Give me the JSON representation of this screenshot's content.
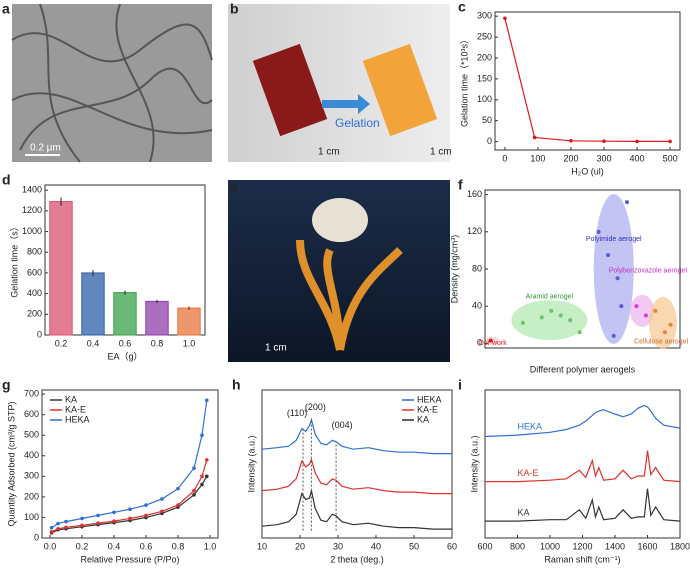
{
  "images": [
    {
      "panel": "a",
      "labels": [
        "0.2 μm"
      ]
    },
    {
      "panel": "b",
      "labels": [
        "Gelation",
        "1 cm",
        "1 cm"
      ]
    },
    {
      "panel": "e",
      "labels": [
        "1 cm"
      ]
    }
  ],
  "chart_data": [
    {
      "panel": "c",
      "type": "line",
      "xlabel": "H₂O (ul)",
      "ylabel": "Gelation time（*10³s）",
      "x": [
        0,
        90,
        200,
        300,
        400,
        500
      ],
      "values": [
        295,
        10,
        2,
        1,
        0.5,
        0.5
      ],
      "color": "#e0191b",
      "markers": true,
      "xlim": [
        -30,
        530
      ],
      "xticks": [
        0,
        100,
        200,
        300,
        400,
        500
      ],
      "ylim": [
        -20,
        310
      ],
      "yticks": [
        0,
        50,
        100,
        150,
        200,
        250,
        300
      ]
    },
    {
      "panel": "d",
      "type": "bar",
      "xlabel": "EA（g）",
      "ylabel": "Gelation time（s）",
      "categories": [
        "0.2",
        "0.4",
        "0.6",
        "0.8",
        "1.0"
      ],
      "values": [
        1290,
        600,
        410,
        325,
        260
      ],
      "errors": [
        40,
        30,
        20,
        15,
        15
      ],
      "colors": [
        "#d9516f",
        "#2e5fa8",
        "#3aa14a",
        "#8e3fa8",
        "#e8743b"
      ],
      "ylim": [
        0,
        1450
      ],
      "yticks": [
        0,
        200,
        400,
        600,
        800,
        1000,
        1200,
        1400
      ]
    },
    {
      "panel": "f",
      "type": "scatter",
      "xlabel": "Different polymer aerogels",
      "ylabel": "Density (mg/cm³)",
      "annotations": [
        "Our work",
        "Aramid aerogel",
        "Polyimide aerogel",
        "Polybenzoxazole aerogel",
        "Cellulose aerogel"
      ],
      "series": [
        {
          "color": "#e0191b",
          "x": [
            0.3
          ],
          "y": [
            3
          ]
        },
        {
          "color": "#6cc36c",
          "x": [
            2,
            3,
            3.5,
            4,
            4.5,
            5
          ],
          "y": [
            22,
            28,
            35,
            30,
            25,
            12
          ]
        },
        {
          "color": "#5a5ad6",
          "x": [
            6,
            6.5,
            7,
            7.5,
            7.2,
            6.8
          ],
          "y": [
            120,
            95,
            70,
            152,
            40,
            8
          ]
        },
        {
          "color": "#d040d0",
          "x": [
            8,
            8.5
          ],
          "y": [
            40,
            30
          ]
        },
        {
          "color": "#e8823b",
          "x": [
            9,
            9.5,
            9.8
          ],
          "y": [
            35,
            12,
            20
          ]
        }
      ],
      "xlim": [
        0,
        10.3
      ],
      "ylim": [
        -5,
        165
      ],
      "yticks": [
        0,
        40,
        80,
        120,
        160
      ]
    },
    {
      "panel": "g",
      "type": "line",
      "xlabel": "Relative Pressure (P/Po)",
      "ylabel": "Quantity Adsorbed (cm³/g STP)",
      "markers": true,
      "legend": "upper left",
      "x": [
        0.01,
        0.05,
        0.1,
        0.2,
        0.3,
        0.4,
        0.5,
        0.6,
        0.7,
        0.8,
        0.9,
        0.95,
        0.98
      ],
      "series": [
        {
          "name": "KA",
          "color": "#333333",
          "values": [
            25,
            40,
            45,
            55,
            65,
            75,
            85,
            100,
            120,
            150,
            210,
            260,
            300
          ]
        },
        {
          "name": "KA-E",
          "color": "#e0302c",
          "values": [
            30,
            45,
            52,
            62,
            72,
            82,
            95,
            110,
            130,
            160,
            230,
            300,
            380
          ]
        },
        {
          "name": "HEKA",
          "color": "#2f6fd6",
          "values": [
            50,
            70,
            80,
            95,
            110,
            125,
            140,
            160,
            190,
            240,
            340,
            500,
            670
          ]
        }
      ],
      "xlim": [
        -0.05,
        1.05
      ],
      "xticks": [
        {
          "value": 0,
          "label": "0.0"
        },
        0.2,
        0.4,
        0.6,
        0.8,
        {
          "value": 1,
          "label": "1.0"
        }
      ],
      "ylim": [
        0,
        720
      ],
      "yticks": [
        0,
        100,
        200,
        300,
        400,
        500,
        600,
        700
      ]
    },
    {
      "panel": "h",
      "type": "line",
      "xlabel": "2 theta (deg.)",
      "ylabel": "Intensity (a.u.)",
      "legend": "upper right",
      "annotations": [
        "(110)",
        "(200)",
        "(004)"
      ],
      "x": [
        10,
        14,
        17,
        19,
        20.5,
        21.5,
        22.5,
        23,
        24,
        25.5,
        27,
        28.5,
        29.5,
        31,
        34,
        38,
        42,
        46,
        50,
        55,
        60
      ],
      "series": [
        {
          "name": "HEKA",
          "color": "#2f6fd6",
          "values": [
            60,
            61,
            62,
            66,
            74,
            72,
            76,
            80,
            70,
            64,
            63,
            66,
            65,
            62,
            60,
            61,
            59,
            58,
            58,
            57,
            57
          ]
        },
        {
          "name": "KA-E",
          "color": "#e0302c",
          "values": [
            32,
            33,
            35,
            40,
            52,
            48,
            50,
            53,
            44,
            37,
            36,
            40,
            39,
            35,
            33,
            34,
            32,
            31,
            31,
            30,
            30
          ]
        },
        {
          "name": "KA",
          "color": "#333333",
          "values": [
            8,
            9,
            11,
            16,
            30,
            26,
            27,
            32,
            20,
            12,
            11,
            16,
            15,
            11,
            9,
            10,
            8,
            7,
            7,
            6,
            6
          ]
        }
      ],
      "xlim": [
        10,
        60
      ],
      "xticks": [
        10,
        20,
        30,
        40,
        50,
        60
      ],
      "ylim": [
        0,
        100
      ]
    },
    {
      "panel": "i",
      "type": "line",
      "xlabel": "Raman shift (cm⁻¹)",
      "ylabel": "Intensity (a.u.)",
      "legend": "inline",
      "x": [
        600,
        800,
        1000,
        1100,
        1180,
        1220,
        1260,
        1280,
        1300,
        1330,
        1400,
        1450,
        1500,
        1540,
        1580,
        1600,
        1620,
        1650,
        1700,
        1800
      ],
      "series": [
        {
          "name": "HEKA",
          "color": "#2f6fd6",
          "values": [
            72,
            73,
            75,
            77,
            80,
            83,
            87,
            89,
            90,
            91,
            88,
            86,
            88,
            92,
            94,
            93,
            90,
            85,
            80,
            78
          ]
        },
        {
          "name": "KA-E",
          "color": "#e0302c",
          "values": [
            40,
            40,
            41,
            42,
            48,
            43,
            55,
            44,
            50,
            41,
            42,
            48,
            42,
            44,
            44,
            62,
            45,
            50,
            41,
            40
          ]
        },
        {
          "name": "KA",
          "color": "#333333",
          "values": [
            12,
            12,
            13,
            13,
            20,
            14,
            27,
            15,
            22,
            13,
            14,
            20,
            14,
            15,
            15,
            35,
            16,
            22,
            13,
            12
          ]
        }
      ],
      "xlim": [
        600,
        1800
      ],
      "xticks": [
        600,
        800,
        1000,
        1200,
        1400,
        1600,
        1800
      ],
      "ylim": [
        0,
        105
      ]
    }
  ]
}
